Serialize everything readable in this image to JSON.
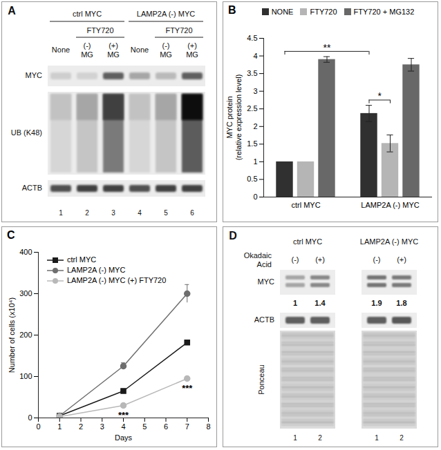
{
  "chart_data": [
    {
      "type": "bar",
      "title": "B",
      "categories": [
        "ctrl MYC",
        "LAMP2A (-) MYC"
      ],
      "series": [
        {
          "name": "NONE",
          "color": "#303030",
          "values": [
            1,
            2.37
          ],
          "errors": [
            0,
            0.23
          ]
        },
        {
          "name": "FTY720",
          "color": "#b5b5b5",
          "values": [
            1,
            1.52
          ],
          "errors": [
            0,
            0.24
          ]
        },
        {
          "name": "FTY720 + MG132",
          "color": "#686868",
          "values": [
            3.9,
            3.75
          ],
          "errors": [
            0.08,
            0.18
          ]
        }
      ],
      "y_label": "MYC protein\n(relative expression level)",
      "ylim": [
        0,
        4.5
      ],
      "yticks": [
        0,
        0.5,
        1,
        1.5,
        2,
        2.5,
        3,
        3.5,
        4,
        4.5
      ],
      "legend": "top",
      "annotations": [
        {
          "text": "**",
          "from": {
            "category": "ctrl MYC",
            "series": "NONE"
          },
          "to": {
            "category": "LAMP2A (-) MYC",
            "series": "NONE"
          }
        },
        {
          "text": "*",
          "from": {
            "category": "LAMP2A (-) MYC",
            "series": "NONE"
          },
          "to": {
            "category": "LAMP2A (-) MYC",
            "series": "FTY720"
          }
        }
      ]
    },
    {
      "type": "line",
      "title": "C",
      "x": [
        1,
        4,
        7
      ],
      "x_label": "Days",
      "y_label": "Number of cells (x10⁴)",
      "xlim": [
        0,
        8
      ],
      "xticks": [
        0,
        1,
        2,
        3,
        4,
        5,
        6,
        7,
        8
      ],
      "ylim": [
        0,
        400
      ],
      "yticks": [
        0,
        100,
        200,
        300,
        400
      ],
      "legend": "top-left",
      "series": [
        {
          "name": "ctrl MYC",
          "color": "#1a1a1a",
          "marker": "square",
          "values": [
            5,
            65,
            182
          ],
          "errors": [
            1,
            3,
            3
          ]
        },
        {
          "name": "LAMP2A (-) MYC",
          "color": "#6e6e6e",
          "marker": "circle",
          "values": [
            5,
            125,
            300
          ],
          "errors": [
            1,
            8,
            22
          ]
        },
        {
          "name": "LAMP2A (-) MYC (+) FTY720",
          "color": "#b8b8b8",
          "marker": "circle",
          "values": [
            3,
            30,
            95
          ],
          "errors": [
            1,
            4,
            5
          ]
        }
      ],
      "annotations": [
        {
          "text": "***",
          "x": 4,
          "series": "LAMP2A (-) MYC (+) FTY720"
        },
        {
          "text": "***",
          "x": 7,
          "series": "LAMP2A (-) MYC (+) FTY720"
        }
      ]
    }
  ],
  "blot_a": {
    "title": "A",
    "groups": [
      {
        "label": "ctrl MYC",
        "lanes": [
          0,
          1,
          2
        ]
      },
      {
        "label": "LAMP2A (-) MYC",
        "lanes": [
          3,
          4,
          5
        ]
      }
    ],
    "spans": [
      {
        "label": "FTY720",
        "lanes": [
          1,
          2
        ]
      },
      {
        "label": "FTY720",
        "lanes": [
          4,
          5
        ]
      }
    ],
    "lane_labels": [
      "None",
      "(-)\nMG",
      "(+)\nMG",
      "None",
      "(-)\nMG",
      "(+)\nMG"
    ],
    "lane_numbers": [
      1,
      2,
      3,
      4,
      5,
      6
    ],
    "rows": [
      {
        "label": "MYC",
        "intensity": [
          0.3,
          0.28,
          0.7,
          0.45,
          0.38,
          0.7
        ]
      },
      {
        "label": "UB (K48)",
        "intensity": [
          0.35,
          0.45,
          0.8,
          0.35,
          0.45,
          0.95
        ],
        "smear": true
      },
      {
        "label": "ACTB",
        "intensity": [
          0.75,
          0.8,
          0.8,
          0.75,
          0.8,
          0.8
        ]
      }
    ]
  },
  "blot_d": {
    "title": "D",
    "treatment": "Okadaic\nAcid",
    "blots": [
      {
        "label": "ctrl MYC",
        "lane_labels": [
          "(-)",
          "(+)"
        ],
        "lane_numbers": [
          1,
          2
        ]
      },
      {
        "label": "LAMP2A (-) MYC",
        "lane_labels": [
          "(-)",
          "(+)"
        ],
        "lane_numbers": [
          1,
          2
        ]
      }
    ],
    "rows": [
      {
        "label": "MYC",
        "intensity": [
          [
            0.45,
            0.55
          ],
          [
            0.62,
            0.6
          ]
        ],
        "quantification": [
          [
            1,
            1.4
          ],
          [
            1.9,
            1.8
          ]
        ]
      },
      {
        "label": "ACTB",
        "intensity": [
          [
            0.7,
            0.7
          ],
          [
            0.7,
            0.72
          ]
        ]
      },
      {
        "label": "Ponceau"
      }
    ]
  }
}
